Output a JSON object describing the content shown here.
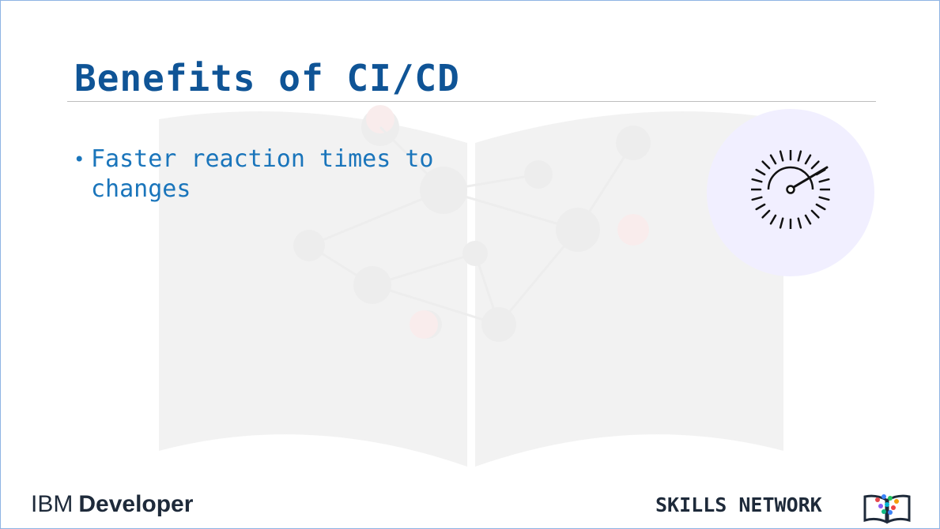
{
  "slide": {
    "title": "Benefits of CI/CD",
    "bullets": [
      {
        "text": "Faster reaction times to changes"
      }
    ],
    "icon": "speedometer-icon",
    "colors": {
      "title": "#0f5496",
      "bullet": "#1a75bb",
      "icon_background": "#f1efff"
    }
  },
  "footer": {
    "brand_prefix": "IBM",
    "brand_name": "Developer",
    "network_label": "SKILLS NETWORK",
    "network_logo_icon": "open-book-icon"
  }
}
